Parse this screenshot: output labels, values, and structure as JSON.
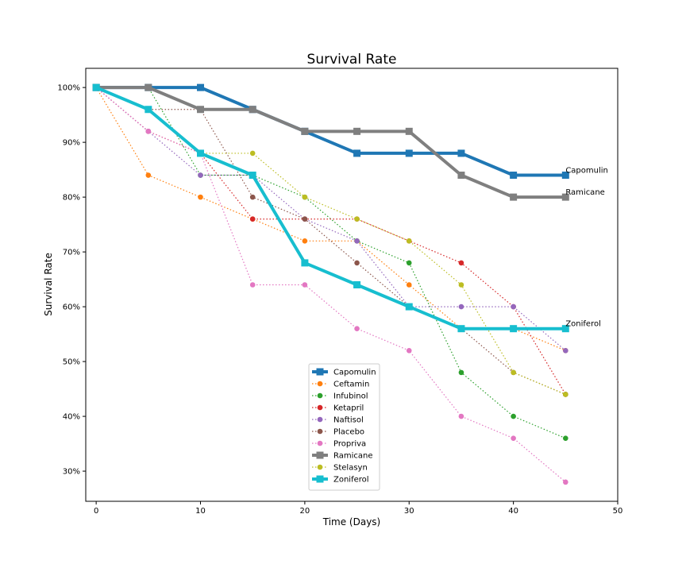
{
  "chart_data": {
    "type": "line",
    "title": "Survival Rate",
    "xlabel": "Time (Days)",
    "ylabel": "Survival Rate",
    "xlim": [
      -1,
      50
    ],
    "ylim": [
      24.5,
      103.5
    ],
    "grid": false,
    "legend_position": "lower center",
    "x": [
      0,
      5,
      10,
      15,
      20,
      25,
      30,
      35,
      40,
      45
    ],
    "xticks": [
      0,
      10,
      20,
      30,
      40,
      50
    ],
    "xtick_labels": [
      "0",
      "10",
      "20",
      "30",
      "40",
      "50"
    ],
    "yticks": [
      30,
      40,
      50,
      60,
      70,
      80,
      90,
      100
    ],
    "ytick_labels": [
      "30%",
      "40%",
      "50%",
      "60%",
      "70%",
      "80%",
      "90%",
      "100%"
    ],
    "series": [
      {
        "name": "Capomulin",
        "color": "#1f77b4",
        "style": "solid-square",
        "values": [
          100,
          100,
          100,
          96,
          92,
          88,
          88,
          88,
          84,
          84
        ]
      },
      {
        "name": "Ceftamin",
        "color": "#ff7f0e",
        "style": "dotted-circle",
        "values": [
          100,
          84,
          80,
          76,
          72,
          72,
          64,
          56,
          56,
          52
        ]
      },
      {
        "name": "Infubinol",
        "color": "#2ca02c",
        "style": "dotted-circle",
        "values": [
          100,
          100,
          84,
          84,
          80,
          72,
          68,
          48,
          40,
          36
        ]
      },
      {
        "name": "Ketapril",
        "color": "#d62728",
        "style": "dotted-circle",
        "values": [
          100,
          92,
          88,
          76,
          76,
          76,
          72,
          68,
          60,
          44
        ]
      },
      {
        "name": "Naftisol",
        "color": "#9467bd",
        "style": "dotted-circle",
        "values": [
          100,
          92,
          84,
          84,
          76,
          72,
          60,
          60,
          60,
          52
        ]
      },
      {
        "name": "Placebo",
        "color": "#8c564b",
        "style": "dotted-circle",
        "values": [
          100,
          96,
          96,
          80,
          76,
          68,
          60,
          56,
          48,
          44
        ]
      },
      {
        "name": "Propriva",
        "color": "#e377c2",
        "style": "dotted-circle",
        "values": [
          100,
          92,
          88,
          64,
          64,
          56,
          52,
          40,
          36,
          28
        ]
      },
      {
        "name": "Ramicane",
        "color": "#7f7f7f",
        "style": "solid-square",
        "values": [
          100,
          100,
          96,
          96,
          92,
          92,
          92,
          84,
          80,
          80
        ]
      },
      {
        "name": "Stelasyn",
        "color": "#bcbd22",
        "style": "dotted-circle",
        "values": [
          100,
          96,
          88,
          88,
          80,
          76,
          72,
          64,
          48,
          44
        ]
      },
      {
        "name": "Zoniferol",
        "color": "#17becf",
        "style": "solid-square",
        "values": [
          100,
          96,
          88,
          84,
          68,
          64,
          60,
          56,
          56,
          56
        ]
      }
    ],
    "annotations": [
      {
        "text": "Capomulin",
        "x": 45,
        "y": 84
      },
      {
        "text": "Ramicane",
        "x": 45,
        "y": 80
      },
      {
        "text": "Zoniferol",
        "x": 45,
        "y": 56
      }
    ]
  }
}
